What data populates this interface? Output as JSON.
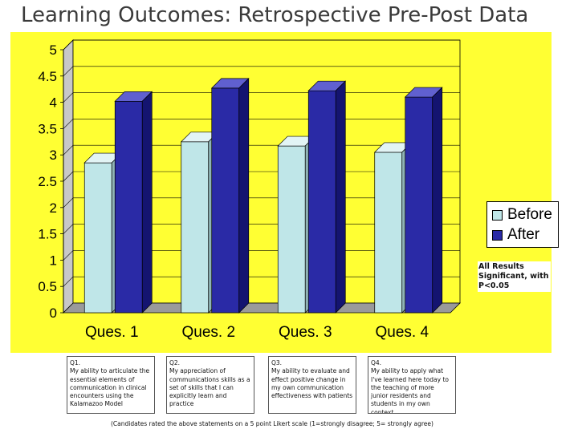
{
  "title": "Learning Outcomes: Retrospective Pre-Post Data",
  "colors": {
    "panel": "#ffff33",
    "before_fill": "#bfe6e8",
    "after_fill": "#2a2aa6",
    "plot_bg": "#ffff33"
  },
  "chart_data": {
    "type": "bar",
    "categories": [
      "Ques. 1",
      "Ques. 2",
      "Ques. 3",
      "Ques. 4"
    ],
    "series": [
      {
        "name": "Before",
        "values": [
          2.85,
          3.25,
          3.17,
          3.05
        ]
      },
      {
        "name": "After",
        "values": [
          4.02,
          4.27,
          4.22,
          4.1
        ]
      }
    ],
    "ylim": [
      0,
      5
    ],
    "yticks": [
      "0",
      "0.5",
      "1",
      "1.5",
      "2",
      "2.5",
      "3",
      "3.5",
      "4",
      "4.5",
      "5"
    ],
    "legend_position": "right",
    "style": "3d-clustered-columns"
  },
  "note": "All Results Significant, with P<0.05",
  "questions": [
    {
      "id": "Q1.",
      "text": "My ability to articulate the essential elements of communication in clinical encounters using the Kalamazoo Model"
    },
    {
      "id": "Q2.",
      "text": "My appreciation of communications skills as a set of skills that I can explicitly learn and practice"
    },
    {
      "id": "Q3.",
      "text": "My ability to evaluate  and effect positive change in my own communication effectiveness with patients"
    },
    {
      "id": "Q4.",
      "text": "My ability to apply what I've learned here today to the teaching of more junior residents and students in my own context"
    }
  ],
  "footnote": "(Candidates rated the above statements on a 5 point Likert scale (1=strongly disagree; 5= strongly agree)"
}
